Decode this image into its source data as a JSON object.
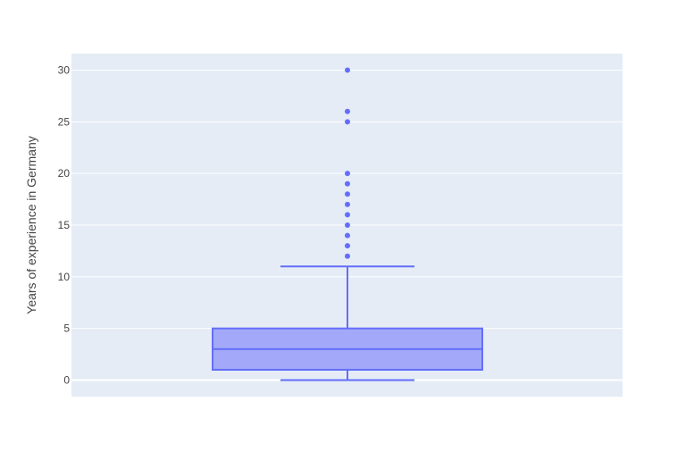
{
  "chart_data": {
    "type": "box",
    "ylabel": "Years of experience in Germany",
    "ylim": [
      -1.6,
      31.6
    ],
    "yticks": [
      0,
      5,
      10,
      15,
      20,
      25,
      30
    ],
    "grid": true,
    "box": {
      "min": 0,
      "q1": 1,
      "median": 3,
      "q3": 5,
      "whisker_high": 11,
      "outliers": [
        12,
        13,
        14,
        15,
        16,
        17,
        18,
        19,
        20,
        25,
        26,
        30
      ]
    },
    "colors": {
      "plot_bg": "#E5ECF6",
      "grid": "#FFFFFF",
      "line": "#636EFA",
      "fill": "#A3A9F8",
      "text": "#444444"
    }
  }
}
